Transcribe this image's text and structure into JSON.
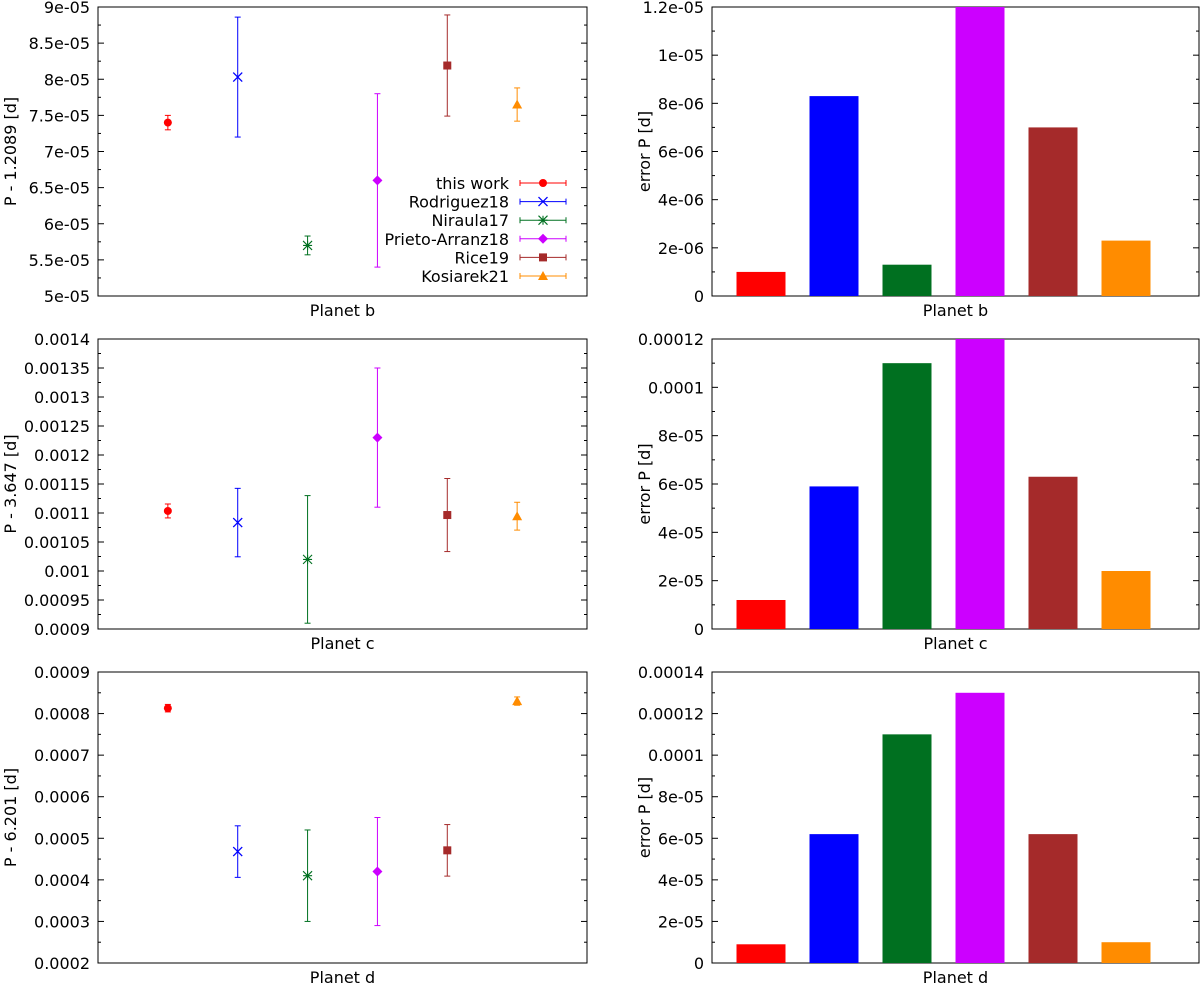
{
  "colors": {
    "this work": "#ff0000",
    "Rodriguez18": "#0000ff",
    "Niraula17": "#007020",
    "Prieto-Arranz18": "#cc00ff",
    "Rice19": "#a52a2a",
    "Kosiarek21": "#ff8c00"
  },
  "legend": {
    "position": "bottom-right",
    "entries": [
      {
        "label": "this work",
        "marker": "circle"
      },
      {
        "label": "Rodriguez18",
        "marker": "x"
      },
      {
        "label": "Niraula17",
        "marker": "star"
      },
      {
        "label": "Prieto-Arranz18",
        "marker": "diamond"
      },
      {
        "label": "Rice19",
        "marker": "square"
      },
      {
        "label": "Kosiarek21",
        "marker": "triangle"
      }
    ]
  },
  "chart_data": [
    {
      "type": "scatter",
      "title": "",
      "xlabel": "Planet b",
      "ylabel": "P - 1.2089 [d]",
      "ylim": [
        5e-05,
        9e-05
      ],
      "xlim": [
        0,
        7
      ],
      "yticks": [
        "5e-05",
        "5.5e-05",
        "6e-05",
        "6.5e-05",
        "7e-05",
        "7.5e-05",
        "8e-05",
        "8.5e-05",
        "9e-05"
      ],
      "series": [
        {
          "name": "this work",
          "x": 1,
          "y": 7.4e-05,
          "err": 1e-06
        },
        {
          "name": "Rodriguez18",
          "x": 2,
          "y": 8.03e-05,
          "err": 8.3e-06
        },
        {
          "name": "Niraula17",
          "x": 3,
          "y": 5.7e-05,
          "err": 1.3e-06
        },
        {
          "name": "Prieto-Arranz18",
          "x": 4,
          "y": 6.6e-05,
          "err": 1.2e-05
        },
        {
          "name": "Rice19",
          "x": 5,
          "y": 8.19e-05,
          "err": 7e-06
        },
        {
          "name": "Kosiarek21",
          "x": 6,
          "y": 7.65e-05,
          "err": 2.3e-06
        }
      ]
    },
    {
      "type": "bar",
      "xlabel": "Planet b",
      "ylabel": "error P [d]",
      "ylim": [
        0,
        1.2e-05
      ],
      "yticks": [
        "0",
        "2e-06",
        "4e-06",
        "6e-06",
        "8e-06",
        "1e-05",
        "1.2e-05"
      ],
      "categories": [
        "this work",
        "Rodriguez18",
        "Niraula17",
        "Prieto-Arranz18",
        "Rice19",
        "Kosiarek21"
      ],
      "values": [
        1e-06,
        8.3e-06,
        1.3e-06,
        1.2e-05,
        7e-06,
        2.3e-06
      ]
    },
    {
      "type": "scatter",
      "xlabel": "Planet c",
      "ylabel": "P - 3.647 [d]",
      "ylim": [
        0.0009,
        0.0014
      ],
      "xlim": [
        0,
        7
      ],
      "yticks": [
        "0.0009",
        "0.00095",
        "0.001",
        "0.00105",
        "0.0011",
        "0.00115",
        "0.0012",
        "0.00125",
        "0.0013",
        "0.00135",
        "0.0014"
      ],
      "series": [
        {
          "name": "this work",
          "x": 1,
          "y": 0.0011035,
          "err": 1.2e-05
        },
        {
          "name": "Rodriguez18",
          "x": 2,
          "y": 0.0010835,
          "err": 5.9e-05
        },
        {
          "name": "Niraula17",
          "x": 3,
          "y": 0.00102,
          "err": 0.00011
        },
        {
          "name": "Prieto-Arranz18",
          "x": 4,
          "y": 0.00123,
          "err": 0.00012
        },
        {
          "name": "Rice19",
          "x": 5,
          "y": 0.0010965,
          "err": 6.3e-05
        },
        {
          "name": "Kosiarek21",
          "x": 6,
          "y": 0.0010945,
          "err": 2.4e-05
        }
      ]
    },
    {
      "type": "bar",
      "xlabel": "Planet c",
      "ylabel": "error P [d]",
      "ylim": [
        0,
        0.00012
      ],
      "yticks": [
        "0",
        "2e-05",
        "4e-05",
        "6e-05",
        "8e-05",
        "0.0001",
        "0.00012"
      ],
      "categories": [
        "this work",
        "Rodriguez18",
        "Niraula17",
        "Prieto-Arranz18",
        "Rice19",
        "Kosiarek21"
      ],
      "values": [
        1.2e-05,
        5.9e-05,
        0.00011,
        0.00012,
        6.3e-05,
        2.4e-05
      ]
    },
    {
      "type": "scatter",
      "xlabel": "Planet d",
      "ylabel": "P - 6.201 [d]",
      "ylim": [
        0.0002,
        0.0009
      ],
      "xlim": [
        0,
        7
      ],
      "yticks": [
        "0.0002",
        "0.0003",
        "0.0004",
        "0.0005",
        "0.0006",
        "0.0007",
        "0.0008",
        "0.0009"
      ],
      "series": [
        {
          "name": "this work",
          "x": 1,
          "y": 0.000813,
          "err": 9e-06
        },
        {
          "name": "Rodriguez18",
          "x": 2,
          "y": 0.000468,
          "err": 6.2e-05
        },
        {
          "name": "Niraula17",
          "x": 3,
          "y": 0.00041,
          "err": 0.00011
        },
        {
          "name": "Prieto-Arranz18",
          "x": 4,
          "y": 0.00042,
          "err": 0.00013
        },
        {
          "name": "Rice19",
          "x": 5,
          "y": 0.000471,
          "err": 6.2e-05
        },
        {
          "name": "Kosiarek21",
          "x": 6,
          "y": 0.00083,
          "err": 1e-05
        }
      ]
    },
    {
      "type": "bar",
      "xlabel": "Planet d",
      "ylabel": "error P [d]",
      "ylim": [
        0,
        0.00014
      ],
      "yticks": [
        "0",
        "2e-05",
        "4e-05",
        "6e-05",
        "8e-05",
        "0.0001",
        "0.00012",
        "0.00014"
      ],
      "categories": [
        "this work",
        "Rodriguez18",
        "Niraula17",
        "Prieto-Arranz18",
        "Rice19",
        "Kosiarek21"
      ],
      "values": [
        9e-06,
        6.2e-05,
        0.00011,
        0.00013,
        6.2e-05,
        1e-05
      ]
    }
  ]
}
